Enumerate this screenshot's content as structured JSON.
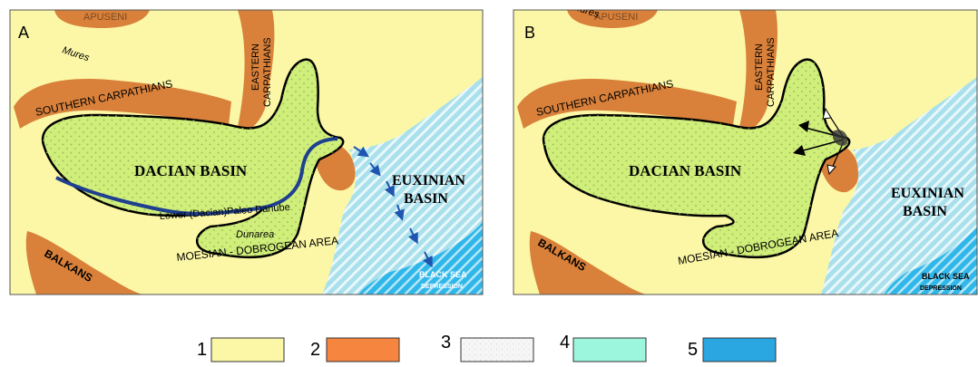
{
  "colors": {
    "land": "#fbf7a6",
    "mountains": "#d9813a",
    "basin": "#cfee7a",
    "euxinian": "#a9e0ec",
    "deep_sea": "#2fb7ea",
    "river": "#1f3f8f",
    "arrow": "#1f55b0",
    "legend_1": "#fbf7a6",
    "legend_2": "#f5853f",
    "legend_3": "#f4f4f4",
    "legend_4": "#9cf5dd",
    "legend_5": "#2aa6e0"
  },
  "panel_a": {
    "letter": "A",
    "labels": {
      "apuseni": "APUSENI",
      "mures": "Mures",
      "southern_carpathians": "SOUTHERN CARPATHIANS",
      "eastern": "EASTERN",
      "carpathians": "CARPATHIANS",
      "dacian_basin": "DACIAN BASIN",
      "euxinian": "EUXINIAN",
      "basin": "BASIN",
      "paleo_danube": "Lower (Dacian)Paleo Danube",
      "dunarea": "Dunarea",
      "moesian": "MOESIAN - DOBROGEAN AREA",
      "balkans": "BALKANS",
      "black_sea": "BLACK SEA",
      "depression": "DEPRESSION"
    }
  },
  "panel_b": {
    "letter": "B",
    "labels": {
      "apuseni": "APUSENI",
      "mures": "Mures",
      "southern_carpathians": "SOUTHERN CARPATHIANS",
      "eastern": "EASTERN",
      "carpathians": "CARPATHIANS",
      "dacian_basin": "DACIAN BASIN",
      "euxinian": "EUXINIAN",
      "basin": "BASIN",
      "moesian": "MOESIAN - DOBROGEAN AREA",
      "balkans": "BALKANS",
      "black_sea": "BLACK SEA",
      "depression": "DEPRESSION"
    }
  },
  "legend": [
    "1",
    "2",
    "3",
    "4",
    "5"
  ]
}
